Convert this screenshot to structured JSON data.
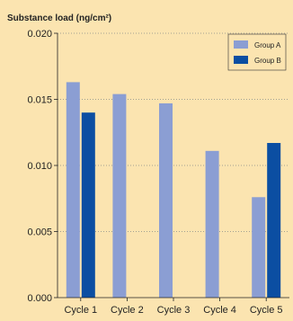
{
  "chart_data": {
    "type": "bar",
    "ylabel": "Substance load (ng/cm²)",
    "categories": [
      "Cycle 1",
      "Cycle 2",
      "Cycle 3",
      "Cycle 4",
      "Cycle 5"
    ],
    "series": [
      {
        "name": "Group A",
        "values": [
          0.0163,
          0.0154,
          0.0147,
          0.0111,
          0.0076
        ]
      },
      {
        "name": "Group B",
        "values": [
          0.014,
          null,
          null,
          null,
          0.0117
        ]
      }
    ],
    "ylim": [
      0,
      0.02
    ],
    "yticks": [
      0.0,
      0.005,
      0.01,
      0.015,
      0.02
    ],
    "ytick_labels": [
      "0.000",
      "0.005",
      "0.010",
      "0.015",
      "0.020"
    ],
    "grid": "horizontal dotted",
    "legend_position": "top-right",
    "colors": {
      "background": "#fbe4b0",
      "series": [
        "#8b9ed3",
        "#0b4ea2"
      ],
      "grid": "#888888",
      "axis": "#222222"
    }
  }
}
